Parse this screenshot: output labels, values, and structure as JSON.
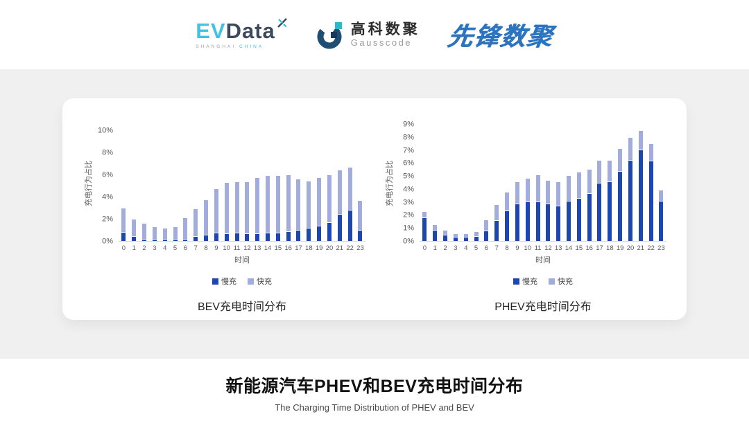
{
  "header": {
    "evdata": {
      "ev": "EV",
      "data": "Data",
      "sub_left": "SHANGHAI",
      "sub_right": "CHINA"
    },
    "gausscode": {
      "cn": "高科数聚",
      "en": "Gausscode"
    },
    "xianfeng": {
      "text": "先锋数聚"
    }
  },
  "footer": {
    "title": "新能源汽车PHEV和BEV充电时间分布",
    "subtitle": "The Charging Time Distribution of PHEV and BEV"
  },
  "colors": {
    "slow_blue": "#1c47ae",
    "fast_blue": "#a2addb",
    "evdata_cyan": "#41c0e8",
    "evdata_slate": "#3d4a5c",
    "gauss_navy": "#1f4e74",
    "gauss_teal": "#2cb9c8",
    "xianfeng_blue": "#2c74c0",
    "band_gray": "#f0f0f0"
  },
  "chart_data": [
    {
      "type": "bar",
      "stacked": true,
      "title": "BEV充电时间分布",
      "xlabel": "时间",
      "ylabel": "充电行为占比",
      "ymax": 10,
      "yticks": [
        "0%",
        "2%",
        "4%",
        "6%",
        "8%",
        "10%"
      ],
      "grid": false,
      "legend_position": "bottom",
      "categories": [
        "0",
        "1",
        "2",
        "3",
        "4",
        "5",
        "6",
        "7",
        "8",
        "9",
        "10",
        "11",
        "12",
        "13",
        "14",
        "15",
        "16",
        "17",
        "18",
        "19",
        "20",
        "21",
        "22",
        "23"
      ],
      "series": [
        {
          "name": "慢充",
          "color": "#1c47ae",
          "values": [
            0.75,
            0.35,
            0.15,
            0.1,
            0.1,
            0.1,
            0.15,
            0.35,
            0.5,
            0.7,
            0.65,
            0.7,
            0.6,
            0.65,
            0.7,
            0.7,
            0.8,
            0.95,
            1.1,
            1.3,
            1.6,
            2.4,
            2.75,
            0.95
          ]
        },
        {
          "name": "快充",
          "color": "#a2addb",
          "values": [
            2.15,
            1.55,
            1.35,
            1.1,
            0.95,
            1.1,
            1.85,
            2.45,
            3.1,
            3.9,
            4.55,
            4.55,
            4.65,
            4.95,
            5.1,
            5.1,
            5.05,
            4.55,
            4.2,
            4.3,
            4.3,
            3.9,
            3.8,
            2.6
          ]
        }
      ]
    },
    {
      "type": "bar",
      "stacked": true,
      "title": "PHEV充电时间分布",
      "xlabel": "时间",
      "ylabel": "充电行为占比",
      "ymax": 9,
      "yticks": [
        "0%",
        "1%",
        "2%",
        "3%",
        "4%",
        "5%",
        "6%",
        "7%",
        "8%",
        "9%"
      ],
      "grid": false,
      "legend_position": "bottom",
      "categories": [
        "0",
        "1",
        "2",
        "3",
        "4",
        "5",
        "6",
        "7",
        "8",
        "9",
        "10",
        "11",
        "12",
        "13",
        "14",
        "15",
        "16",
        "17",
        "18",
        "19",
        "20",
        "21",
        "22",
        "23"
      ],
      "series": [
        {
          "name": "慢充",
          "color": "#1c47ae",
          "values": [
            1.75,
            0.8,
            0.45,
            0.28,
            0.25,
            0.32,
            0.73,
            1.55,
            2.27,
            2.8,
            3.0,
            3.0,
            2.8,
            2.65,
            3.05,
            3.25,
            3.6,
            4.4,
            4.55,
            5.35,
            6.2,
            7.0,
            6.15,
            3.05
          ]
        },
        {
          "name": "快充",
          "color": "#a2addb",
          "values": [
            0.45,
            0.35,
            0.3,
            0.22,
            0.25,
            0.33,
            0.82,
            1.15,
            1.38,
            1.7,
            1.75,
            2.0,
            1.8,
            1.8,
            1.9,
            1.95,
            1.85,
            1.7,
            1.55,
            1.7,
            1.7,
            1.4,
            1.25,
            0.8
          ]
        }
      ]
    }
  ]
}
